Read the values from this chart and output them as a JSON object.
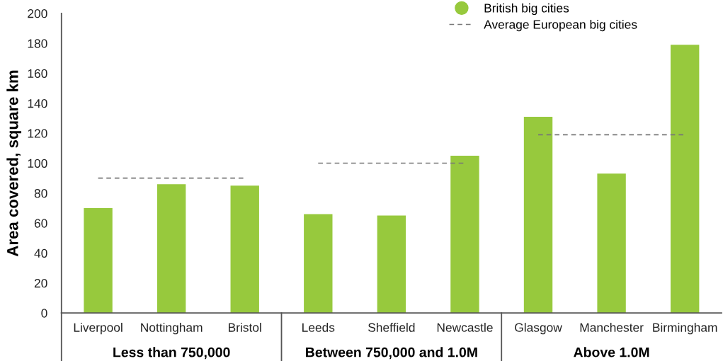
{
  "chart_data": {
    "type": "bar",
    "ylabel": "Area covered, square km",
    "categories": [
      "Liverpool",
      "Nottingham",
      "Bristol",
      "Leeds",
      "Sheffield",
      "Newcastle",
      "Glasgow",
      "Manchester",
      "Birmingham"
    ],
    "series": [
      {
        "name": "British big cities",
        "color": "#97c93d",
        "values": [
          70,
          86,
          85,
          66,
          65,
          105,
          131,
          93,
          179
        ]
      },
      {
        "name": "Average European big cities",
        "type": "line",
        "color": "#777777",
        "line_style": "dashed",
        "marker": "none",
        "values": [
          90,
          90,
          90,
          100,
          100,
          100,
          119,
          119,
          119
        ]
      }
    ],
    "annotations": [
      "Less than 750,000",
      "Between 750,000 and 1.0M",
      "Above 1.0M"
    ],
    "ylim": [
      0,
      200
    ],
    "yticks": [
      0,
      20,
      40,
      60,
      80,
      100,
      120,
      140,
      160,
      180,
      200
    ],
    "grid": false,
    "legend": "top right"
  }
}
